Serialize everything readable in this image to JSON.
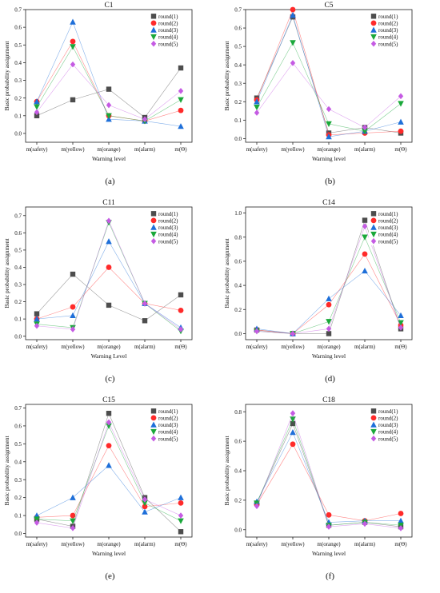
{
  "colors": {
    "round1": "#4d4d4d",
    "round2": "#ff2a2a",
    "round3": "#1e6fd9",
    "round4": "#1aa83a",
    "round5": "#c55be3"
  },
  "chart_data": [
    {
      "type": "line",
      "title": "C1",
      "panel_label": "(a)",
      "xlabel": "Warning level",
      "ylabel": "Basic probability assignment",
      "categories": [
        "m(safety)",
        "m(yellow)",
        "m(orange)",
        "m(alarm)",
        "m(Θ)"
      ],
      "ylim": [
        -0.05,
        0.7
      ],
      "yticks": [
        "0.0",
        "0.1",
        "0.2",
        "0.3",
        "0.4",
        "0.5",
        "0.6",
        "0.7"
      ],
      "legend_position": "top-right",
      "series": [
        {
          "name": "round(1)",
          "marker": "square",
          "values": [
            0.1,
            0.19,
            0.25,
            0.09,
            0.37
          ]
        },
        {
          "name": "round(2)",
          "marker": "circle",
          "values": [
            0.18,
            0.52,
            0.1,
            0.07,
            0.13
          ]
        },
        {
          "name": "round(3)",
          "marker": "triangle-up",
          "values": [
            0.18,
            0.63,
            0.08,
            0.07,
            0.04
          ]
        },
        {
          "name": "round(4)",
          "marker": "triangle-down",
          "values": [
            0.15,
            0.49,
            0.1,
            0.07,
            0.19
          ]
        },
        {
          "name": "round(5)",
          "marker": "diamond",
          "values": [
            0.12,
            0.39,
            0.16,
            0.08,
            0.24
          ]
        }
      ]
    },
    {
      "type": "line",
      "title": "C5",
      "panel_label": "(b)",
      "xlabel": "Warning level",
      "ylabel": "Basic probability assignment",
      "categories": [
        "m(safety)",
        "m(yellow)",
        "m(orange)",
        "m(alarm)",
        "m(Θ)"
      ],
      "ylim": [
        -0.02,
        0.7
      ],
      "yticks": [
        "0.0",
        "0.1",
        "0.2",
        "0.3",
        "0.4",
        "0.5",
        "0.6",
        "0.7"
      ],
      "legend_position": "top-right",
      "series": [
        {
          "name": "round(1)",
          "marker": "square",
          "values": [
            0.22,
            0.66,
            0.03,
            0.06,
            0.03
          ]
        },
        {
          "name": "round(2)",
          "marker": "circle",
          "values": [
            0.21,
            0.7,
            0.02,
            0.03,
            0.04
          ]
        },
        {
          "name": "round(3)",
          "marker": "triangle-up",
          "values": [
            0.2,
            0.67,
            0.01,
            0.04,
            0.09
          ]
        },
        {
          "name": "round(4)",
          "marker": "triangle-down",
          "values": [
            0.17,
            0.52,
            0.08,
            0.04,
            0.19
          ]
        },
        {
          "name": "round(5)",
          "marker": "diamond",
          "values": [
            0.14,
            0.41,
            0.16,
            0.06,
            0.23
          ]
        }
      ]
    },
    {
      "type": "line",
      "title": "C11",
      "panel_label": "(c)",
      "xlabel": "Warning Level",
      "ylabel": "Basic probability assignment",
      "categories": [
        "m(safety)",
        "m(yellow)",
        "m(orange)",
        "m(alarm)",
        "m(Θ)"
      ],
      "ylim": [
        -0.02,
        0.75
      ],
      "yticks": [
        "0.0",
        "0.1",
        "0.2",
        "0.3",
        "0.4",
        "0.5",
        "0.6",
        "0.7"
      ],
      "legend_position": "top-right",
      "series": [
        {
          "name": "round(1)",
          "marker": "square",
          "values": [
            0.13,
            0.36,
            0.18,
            0.09,
            0.24
          ]
        },
        {
          "name": "round(2)",
          "marker": "circle",
          "values": [
            0.1,
            0.17,
            0.4,
            0.19,
            0.15
          ]
        },
        {
          "name": "round(3)",
          "marker": "triangle-up",
          "values": [
            0.1,
            0.12,
            0.55,
            0.19,
            0.05
          ]
        },
        {
          "name": "round(4)",
          "marker": "triangle-down",
          "values": [
            0.07,
            0.05,
            0.66,
            0.19,
            0.03
          ]
        },
        {
          "name": "round(5)",
          "marker": "diamond",
          "values": [
            0.06,
            0.04,
            0.67,
            0.19,
            0.04
          ]
        }
      ]
    },
    {
      "type": "line",
      "title": "C14",
      "panel_label": "(d)",
      "xlabel": "Warning level",
      "ylabel": "Basic probability assignment",
      "categories": [
        "m(safety)",
        "m(yellow)",
        "m(orange)",
        "m(alarm)",
        "m(Θ)"
      ],
      "ylim": [
        -0.05,
        1.05
      ],
      "yticks": [
        "0.0",
        "0.2",
        "0.4",
        "0.6",
        "0.8",
        "1.0"
      ],
      "legend_position": "top-right",
      "series": [
        {
          "name": "round(1)",
          "marker": "square",
          "values": [
            0.03,
            0.0,
            0.0,
            0.94,
            0.04
          ]
        },
        {
          "name": "round(2)",
          "marker": "circle",
          "values": [
            0.03,
            0.0,
            0.24,
            0.66,
            0.07
          ]
        },
        {
          "name": "round(3)",
          "marker": "triangle-up",
          "values": [
            0.04,
            0.0,
            0.29,
            0.52,
            0.15
          ]
        },
        {
          "name": "round(4)",
          "marker": "triangle-down",
          "values": [
            0.02,
            0.0,
            0.1,
            0.8,
            0.09
          ]
        },
        {
          "name": "round(5)",
          "marker": "diamond",
          "values": [
            0.02,
            0.0,
            0.04,
            0.89,
            0.05
          ]
        }
      ]
    },
    {
      "type": "line",
      "title": "C15",
      "panel_label": "(e)",
      "xlabel": "Warning level",
      "ylabel": "Basic probability assignment",
      "categories": [
        "m(safety)",
        "m(yellow)",
        "m(orange)",
        "m(alarm)",
        "m(Θ)"
      ],
      "ylim": [
        -0.02,
        0.72
      ],
      "yticks": [
        "0.0",
        "0.1",
        "0.2",
        "0.3",
        "0.4",
        "0.5",
        "0.6",
        "0.7"
      ],
      "legend_position": "top-right",
      "series": [
        {
          "name": "round(1)",
          "marker": "square",
          "values": [
            0.08,
            0.04,
            0.67,
            0.2,
            0.01
          ]
        },
        {
          "name": "round(2)",
          "marker": "circle",
          "values": [
            0.09,
            0.1,
            0.49,
            0.15,
            0.17
          ]
        },
        {
          "name": "round(3)",
          "marker": "triangle-up",
          "values": [
            0.1,
            0.2,
            0.38,
            0.12,
            0.2
          ]
        },
        {
          "name": "round(4)",
          "marker": "triangle-down",
          "values": [
            0.08,
            0.07,
            0.6,
            0.17,
            0.07
          ]
        },
        {
          "name": "round(5)",
          "marker": "diamond",
          "values": [
            0.06,
            0.03,
            0.62,
            0.19,
            0.1
          ]
        }
      ]
    },
    {
      "type": "line",
      "title": "C18",
      "panel_label": "(f)",
      "xlabel": "Warning level",
      "ylabel": "Basic probability assignment",
      "categories": [
        "m(safety)",
        "m(yellow)",
        "m(orange)",
        "m(alarm)",
        "m(Θ)"
      ],
      "ylim": [
        -0.05,
        0.85
      ],
      "yticks": [
        "0.0",
        "0.2",
        "0.4",
        "0.6",
        "0.8"
      ],
      "legend_position": "top-right",
      "series": [
        {
          "name": "round(1)",
          "marker": "square",
          "values": [
            0.18,
            0.72,
            0.03,
            0.05,
            0.02
          ]
        },
        {
          "name": "round(2)",
          "marker": "circle",
          "values": [
            0.17,
            0.58,
            0.1,
            0.06,
            0.11
          ]
        },
        {
          "name": "round(3)",
          "marker": "triangle-up",
          "values": [
            0.19,
            0.66,
            0.05,
            0.06,
            0.06
          ]
        },
        {
          "name": "round(4)",
          "marker": "triangle-down",
          "values": [
            0.18,
            0.75,
            0.03,
            0.05,
            0.03
          ]
        },
        {
          "name": "round(5)",
          "marker": "diamond",
          "values": [
            0.16,
            0.79,
            0.02,
            0.04,
            0.01
          ]
        }
      ]
    }
  ]
}
